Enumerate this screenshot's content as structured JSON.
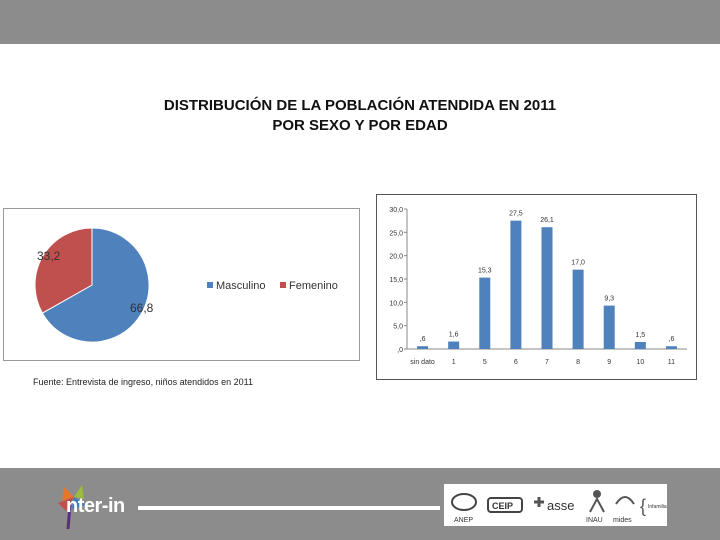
{
  "header": {
    "title_line1": "DISTRIBUCIÓN DE LA POBLACIÓN ATENDIDA EN 2011",
    "title_line2": "POR SEXO Y POR EDAD"
  },
  "source_note": "Fuente: Entrevista de ingreso, niños atendidos en 2011",
  "colors": {
    "masculino": "#4f81bd",
    "femenino": "#c0504d",
    "bar": "#4f81bd",
    "topbar": "#8c8c8c"
  },
  "footer": {
    "logo_text": "nter-in",
    "partners": [
      "ANEP",
      "CEIP",
      "asse",
      "INAU",
      "mides",
      "Infamilia"
    ]
  },
  "chart_data": [
    {
      "type": "pie",
      "title": "",
      "categories": [
        "Masculino",
        "Femenino"
      ],
      "labels": [
        "66,8",
        "33,2"
      ],
      "values": [
        66.8,
        33.2
      ],
      "legend": "right"
    },
    {
      "type": "bar",
      "title": "",
      "xlabel": "",
      "ylabel": "",
      "categories": [
        "sin dato",
        "1",
        "5",
        "6",
        "7",
        "8",
        "9",
        "10",
        "11"
      ],
      "values": [
        0.6,
        1.6,
        15.3,
        27.5,
        26.1,
        17.0,
        9.3,
        1.5,
        0.6
      ],
      "labels": [
        ",6",
        "1,6",
        "15,3",
        "27,5",
        "26,1",
        "17,0",
        "9,3",
        "1,5",
        ",6"
      ],
      "ylim": [
        0,
        30
      ],
      "yticks": [
        ",0",
        "5,0",
        "10,0",
        "15,0",
        "20,0",
        "25,0",
        "30,0"
      ],
      "grid": false
    }
  ]
}
